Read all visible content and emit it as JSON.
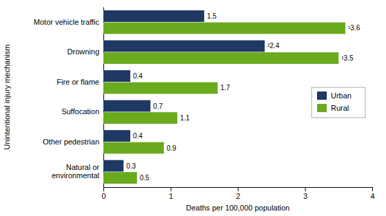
{
  "chart_data": {
    "type": "bar",
    "orientation": "horizontal",
    "categories": [
      "Motor vehicle traffic",
      "Drowning",
      "Fire or flame",
      "Suffocation",
      "Other pedestrian",
      "Natural or\nenvironmental"
    ],
    "series": [
      {
        "name": "Urban",
        "color": "#1f3864",
        "values": [
          1.5,
          2.4,
          0.4,
          0.7,
          0.4,
          0.3
        ],
        "value_labels": [
          "1.5",
          "²2.4",
          "0.4",
          "0.7",
          "0.4",
          "0.3"
        ]
      },
      {
        "name": "Rural",
        "color": "#6aaa1e",
        "values": [
          3.6,
          3.5,
          1.7,
          1.1,
          0.9,
          0.5
        ],
        "value_labels": [
          "¹3.6",
          "¹3.5",
          "1.7",
          "1.1",
          "0.9",
          "0.5"
        ]
      }
    ],
    "xlabel": "Deaths per 100,000 population",
    "ylabel": "Unintentional injury mechanism",
    "xlim": [
      0,
      4
    ],
    "xticks": [
      0,
      1,
      2,
      3,
      4
    ],
    "legend": "right",
    "data_labels": true
  }
}
